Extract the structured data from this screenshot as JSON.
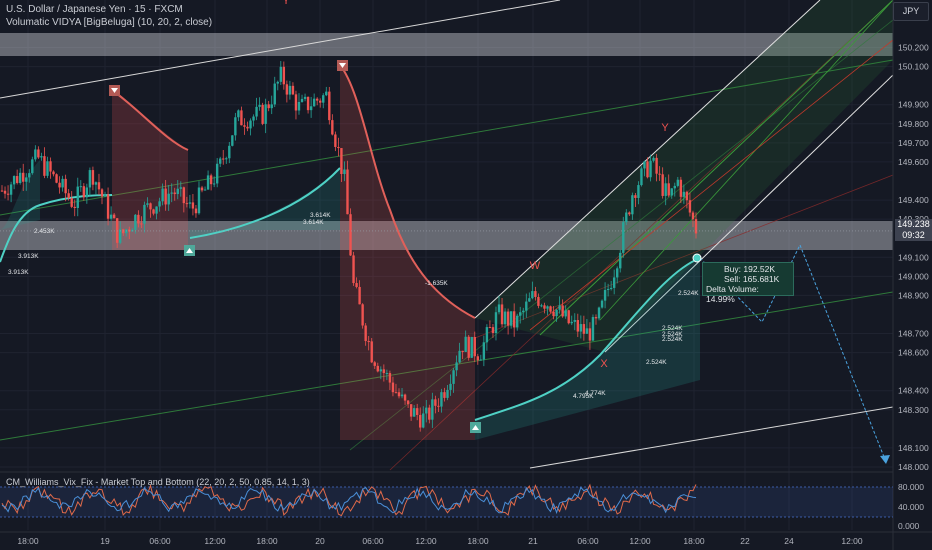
{
  "header": {
    "symbol_title": "U.S. Dollar / Japanese Yen · 15 · FXCM",
    "indicator_title": "Volumatic VIDYA [BigBeluga] (10, 20, 2, close)",
    "osc_title": "CM_Williams_Vix_Fix - Market Top and Bottom (22, 20, 2, 50, 0.85, 14, 1, 3)"
  },
  "currency_button": "JPY",
  "price_tag": {
    "price": "149.238",
    "timer": "09:32"
  },
  "volume_box": {
    "buy": "Buy: 192.52K",
    "sell": "Sell: 165.681K",
    "delta": "Delta Volume: 14.99%"
  },
  "colors": {
    "background": "#151924",
    "bull": "#26a69a",
    "bear": "#ef5350",
    "vidya_bull": "#4fd1c5",
    "vidya_bear": "#e0605a",
    "zone": "#c9ccd3",
    "channel_white": "#d9d9d9",
    "channel_green": "#3a7d3a",
    "projection": "#4aa3df"
  },
  "chart_data": {
    "type": "candlestick",
    "symbol": "U.S. Dollar / Japanese Yen",
    "interval": "15",
    "y_axis_ticks": [
      "150.200",
      "150.100",
      "149.900",
      "149.800",
      "149.700",
      "149.600",
      "149.400",
      "149.300",
      "149.100",
      "149.000",
      "148.900",
      "148.700",
      "148.600",
      "148.400",
      "148.300",
      "148.100",
      "148.000"
    ],
    "ylim": [
      148.0,
      150.2
    ],
    "x_axis_ticks": [
      "18:00",
      "19",
      "06:00",
      "12:00",
      "18:00",
      "20",
      "06:00",
      "12:00",
      "18:00",
      "21",
      "06:00",
      "12:00",
      "18:00",
      "22",
      "24",
      "12:00"
    ],
    "current_price": 149.238,
    "price_path": [
      [
        0,
        149.45
      ],
      [
        0.04,
        149.62
      ],
      [
        0.08,
        149.38
      ],
      [
        0.1,
        149.55
      ],
      [
        0.13,
        149.2
      ],
      [
        0.15,
        149.32
      ],
      [
        0.19,
        149.45
      ],
      [
        0.21,
        149.35
      ],
      [
        0.24,
        149.55
      ],
      [
        0.26,
        149.82
      ],
      [
        0.29,
        149.85
      ],
      [
        0.31,
        150.05
      ],
      [
        0.33,
        149.88
      ],
      [
        0.36,
        149.95
      ],
      [
        0.38,
        149.5
      ],
      [
        0.39,
        148.95
      ],
      [
        0.41,
        148.6
      ],
      [
        0.43,
        148.45
      ],
      [
        0.45,
        148.3
      ],
      [
        0.47,
        148.25
      ],
      [
        0.49,
        148.4
      ],
      [
        0.51,
        148.65
      ],
      [
        0.53,
        148.6
      ],
      [
        0.55,
        148.8
      ],
      [
        0.57,
        148.75
      ],
      [
        0.59,
        148.9
      ],
      [
        0.61,
        148.85
      ],
      [
        0.63,
        148.75
      ],
      [
        0.65,
        148.7
      ],
      [
        0.66,
        148.75
      ],
      [
        0.68,
        149.05
      ],
      [
        0.7,
        149.45
      ],
      [
        0.72,
        149.6
      ],
      [
        0.74,
        149.4
      ],
      [
        0.75,
        149.5
      ],
      [
        0.77,
        149.25
      ]
    ],
    "zones": [
      {
        "name": "upper_resistance",
        "from": 150.103,
        "to": 150.22
      },
      {
        "name": "mid_support",
        "from": 149.08,
        "to": 149.24
      }
    ],
    "pattern_labels": [
      "W",
      "X",
      "Y",
      "Y"
    ],
    "vidya_volume_labels": [
      "2.453K",
      "3.913K",
      "3.913K",
      "3.614K",
      "3.614K",
      "-1.635K",
      "2.524K",
      "2.524K",
      "2.524K",
      "2.524K",
      "2.524K",
      "4.795K",
      "4.774K"
    ],
    "projection_path": [
      149.06,
      148.72,
      149.12,
      148.05
    ],
    "oscillator": {
      "title": "CM_Williams_Vix_Fix - Market Top and Bottom",
      "y_ticks": [
        "80.000",
        "40.000",
        "0.000"
      ]
    }
  }
}
